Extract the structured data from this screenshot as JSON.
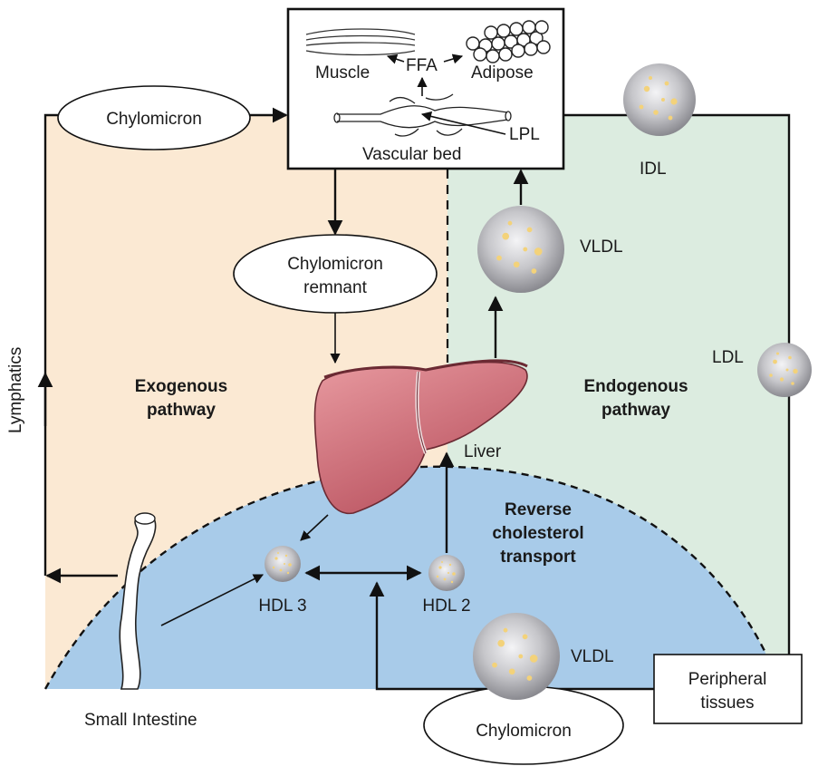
{
  "labels": {
    "lymphatics": "Lymphatics",
    "chylomicron_top": "Chylomicron",
    "muscle": "Muscle",
    "ffa": "FFA",
    "adipose": "Adipose",
    "vascular_bed": "Vascular bed",
    "lpl": "LPL",
    "idl": "IDL",
    "vldl_top": "VLDL",
    "chylomicron_remnant_1": "Chylomicron",
    "chylomicron_remnant_2": "remnant",
    "exogenous_1": "Exogenous",
    "exogenous_2": "pathway",
    "endogenous_1": "Endogenous",
    "endogenous_2": "pathway",
    "ldl": "LDL",
    "liver": "Liver",
    "reverse_1": "Reverse",
    "reverse_2": "cholesterol",
    "reverse_3": "transport",
    "hdl3": "HDL 3",
    "hdl2": "HDL 2",
    "vldl_bottom": "VLDL",
    "peripheral_1": "Peripheral",
    "peripheral_2": "tissues",
    "small_intestine": "Small Intestine",
    "chylomicron_bottom": "Chylomicron"
  },
  "colors": {
    "exogenous_bg": "#fbe9d3",
    "endogenous_bg": "#dcece0",
    "reverse_bg": "#a8cbe9",
    "liver": "#d9757f",
    "particle": "#c9c9cc",
    "particle_spot": "#f3d27a"
  }
}
